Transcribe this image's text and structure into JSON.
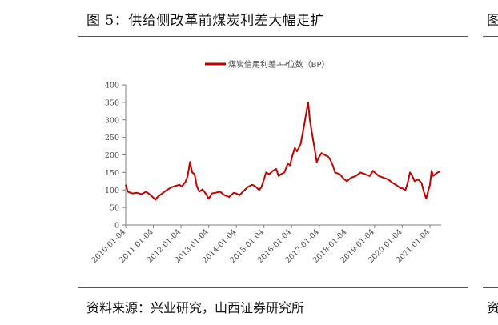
{
  "figure": {
    "title": "图 5：供给侧改革前煤炭利差大幅走扩",
    "source": "资料来源：兴业研究，山西证券研究所",
    "next_title_fragment": "图",
    "next_source_fragment": "资"
  },
  "colors": {
    "series": "#c00000",
    "axis": "#7f7f7f",
    "text": "#444444"
  },
  "chart_data": {
    "type": "line",
    "title": "",
    "xlabel": "",
    "ylabel": "",
    "ylim": [
      0,
      400
    ],
    "yticks": [
      0,
      50,
      100,
      150,
      200,
      250,
      300,
      350,
      400
    ],
    "grid": false,
    "legend_position": "top-center",
    "xtick_labels": [
      "2010-01-04",
      "2011-01-04",
      "2012-01-04",
      "2013-01-04",
      "2014-01-04",
      "2015-01-04",
      "2016-01-04",
      "2017-01-04",
      "2018-01-04",
      "2019-01-04",
      "2020-01-04",
      "2021-01-04"
    ],
    "series": [
      {
        "name": "煤炭信用利差-中位数（BP）",
        "points": [
          [
            "2010-01-04",
            115
          ],
          [
            "2010-02-01",
            95
          ],
          [
            "2010-04-01",
            90
          ],
          [
            "2010-06-01",
            92
          ],
          [
            "2010-08-01",
            88
          ],
          [
            "2010-10-01",
            95
          ],
          [
            "2010-12-01",
            85
          ],
          [
            "2011-02-01",
            72
          ],
          [
            "2011-03-01",
            80
          ],
          [
            "2011-05-01",
            90
          ],
          [
            "2011-07-01",
            100
          ],
          [
            "2011-09-01",
            108
          ],
          [
            "2011-11-01",
            112
          ],
          [
            "2011-12-15",
            115
          ],
          [
            "2012-01-15",
            110
          ],
          [
            "2012-03-01",
            122
          ],
          [
            "2012-04-01",
            140
          ],
          [
            "2012-05-01",
            180
          ],
          [
            "2012-06-01",
            150
          ],
          [
            "2012-07-01",
            145
          ],
          [
            "2012-08-01",
            110
          ],
          [
            "2012-09-01",
            95
          ],
          [
            "2012-10-15",
            102
          ],
          [
            "2012-12-01",
            88
          ],
          [
            "2013-01-04",
            75
          ],
          [
            "2013-02-15",
            90
          ],
          [
            "2013-04-01",
            92
          ],
          [
            "2013-06-01",
            95
          ],
          [
            "2013-08-01",
            85
          ],
          [
            "2013-10-01",
            80
          ],
          [
            "2013-12-01",
            92
          ],
          [
            "2014-01-04",
            90
          ],
          [
            "2014-02-15",
            85
          ],
          [
            "2014-04-01",
            95
          ],
          [
            "2014-06-01",
            108
          ],
          [
            "2014-08-01",
            115
          ],
          [
            "2014-09-15",
            110
          ],
          [
            "2014-11-01",
            100
          ],
          [
            "2014-12-01",
            108
          ],
          [
            "2015-01-04",
            130
          ],
          [
            "2015-02-01",
            150
          ],
          [
            "2015-03-15",
            145
          ],
          [
            "2015-05-01",
            155
          ],
          [
            "2015-06-15",
            160
          ],
          [
            "2015-07-15",
            140
          ],
          [
            "2015-08-15",
            145
          ],
          [
            "2015-10-01",
            150
          ],
          [
            "2015-11-15",
            175
          ],
          [
            "2015-12-15",
            170
          ],
          [
            "2016-01-04",
            190
          ],
          [
            "2016-02-15",
            220
          ],
          [
            "2016-03-15",
            210
          ],
          [
            "2016-05-01",
            230
          ],
          [
            "2016-06-15",
            280
          ],
          [
            "2016-07-15",
            320
          ],
          [
            "2016-08-10",
            350
          ],
          [
            "2016-09-01",
            300
          ],
          [
            "2016-10-01",
            260
          ],
          [
            "2016-11-01",
            220
          ],
          [
            "2016-12-01",
            180
          ],
          [
            "2017-01-04",
            195
          ],
          [
            "2017-02-01",
            205
          ],
          [
            "2017-03-15",
            200
          ],
          [
            "2017-05-01",
            195
          ],
          [
            "2017-06-01",
            185
          ],
          [
            "2017-07-01",
            170
          ],
          [
            "2017-08-01",
            150
          ],
          [
            "2017-10-01",
            145
          ],
          [
            "2017-12-01",
            130
          ],
          [
            "2018-01-04",
            125
          ],
          [
            "2018-03-01",
            135
          ],
          [
            "2018-05-01",
            140
          ],
          [
            "2018-07-01",
            150
          ],
          [
            "2018-09-01",
            145
          ],
          [
            "2018-11-01",
            140
          ],
          [
            "2018-12-15",
            155
          ],
          [
            "2019-01-04",
            150
          ],
          [
            "2019-03-01",
            140
          ],
          [
            "2019-05-01",
            135
          ],
          [
            "2019-07-01",
            130
          ],
          [
            "2019-09-01",
            120
          ],
          [
            "2019-11-01",
            112
          ],
          [
            "2019-12-15",
            105
          ],
          [
            "2020-01-04",
            105
          ],
          [
            "2020-02-15",
            100
          ],
          [
            "2020-03-15",
            120
          ],
          [
            "2020-04-15",
            150
          ],
          [
            "2020-05-15",
            140
          ],
          [
            "2020-06-15",
            125
          ],
          [
            "2020-08-01",
            130
          ],
          [
            "2020-09-15",
            120
          ],
          [
            "2020-10-15",
            95
          ],
          [
            "2020-11-15",
            75
          ],
          [
            "2020-12-15",
            100
          ],
          [
            "2021-01-04",
            115
          ],
          [
            "2021-01-25",
            155
          ],
          [
            "2021-02-15",
            140
          ],
          [
            "2021-03-15",
            145
          ],
          [
            "2021-04-15",
            150
          ],
          [
            "2021-05-20",
            153
          ]
        ]
      }
    ]
  }
}
